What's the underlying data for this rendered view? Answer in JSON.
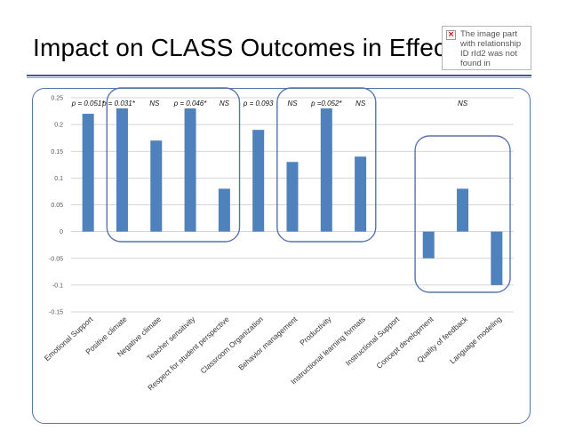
{
  "slide": {
    "title": "Impact on CLASS Outcomes in Effect Sizes",
    "missing_image_text": "The image part with relationship ID rId2 was not found in",
    "missing_image_icon": "broken-image-icon"
  },
  "chart_data": {
    "type": "bar",
    "title": "",
    "xlabel": "",
    "ylabel": "",
    "ylim": [
      -0.15,
      0.25
    ],
    "yticks": [
      "0.25",
      "0.2",
      "0.15",
      "0.1",
      "0.05",
      "0",
      "-0.05",
      "-0.1",
      "-0.15"
    ],
    "grid": true,
    "bar_color": "#4f81bd",
    "categories": [
      "Emotional Support",
      "Positive climate",
      "Negative climate",
      "Teacher sensitivity",
      "Respect for student perspective",
      "Classroom Organization",
      "Behavior management",
      "Productivity",
      "Instructional learning formats",
      "Instructional Support",
      "Concept development",
      "Quality of feedback",
      "Language modeling"
    ],
    "values": [
      0.22,
      0.23,
      0.17,
      0.23,
      0.08,
      0.19,
      0.13,
      0.23,
      0.14,
      null,
      -0.05,
      0.08,
      -0.1
    ],
    "annotations": [
      {
        "category": "Emotional Support",
        "text": "p = 0.051*"
      },
      {
        "category": "Positive climate",
        "text": "p = 0.031*"
      },
      {
        "category": "Negative climate",
        "text": "NS"
      },
      {
        "category": "Teacher sensitivity",
        "text": "p = 0.046*"
      },
      {
        "category": "Respect for student perspective",
        "text": "NS"
      },
      {
        "category": "Classroom Organization",
        "text": "p = 0.093"
      },
      {
        "category": "Behavior management",
        "text": "NS"
      },
      {
        "category": "Productivity",
        "text": "p =0.052*"
      },
      {
        "category": "Instructional learning formats",
        "text": "NS"
      },
      {
        "category": "Quality of feedback",
        "text": "NS"
      }
    ],
    "highlight_groups": [
      {
        "from": "Positive climate",
        "to": "Respect for student perspective"
      },
      {
        "from": "Behavior management",
        "to": "Instructional learning formats"
      },
      {
        "from": "Concept development",
        "to": "Language modeling"
      }
    ]
  }
}
